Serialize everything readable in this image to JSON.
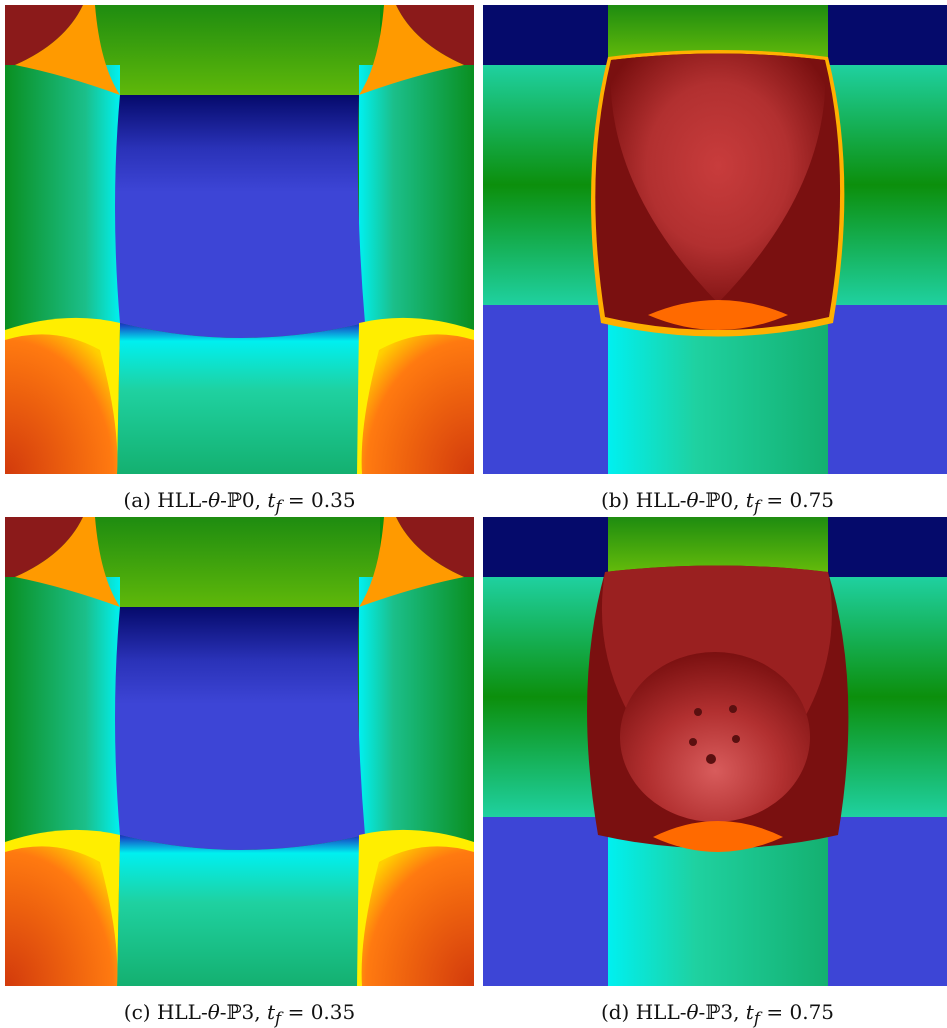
{
  "figure": {
    "panels": [
      {
        "id": "a",
        "label": "(a)",
        "method": "HLL-",
        "theta": "θ",
        "dash": "-",
        "space": "ℙ0",
        "sep": ", ",
        "t": "t",
        "sub": "f",
        "eq": " = 0.35",
        "time": "0.35"
      },
      {
        "id": "b",
        "label": "(b)",
        "method": "HLL-",
        "theta": "θ",
        "dash": "-",
        "space": "ℙ0",
        "sep": ", ",
        "t": "t",
        "sub": "f",
        "eq": " = 0.75",
        "time": "0.75"
      },
      {
        "id": "c",
        "label": "(c)",
        "method": "HLL-",
        "theta": "θ",
        "dash": "-",
        "space": "ℙ3",
        "sep": ", ",
        "t": "t",
        "sub": "f",
        "eq": " = 0.35",
        "time": "0.35"
      },
      {
        "id": "d",
        "label": "(d)",
        "method": "HLL-",
        "theta": "θ",
        "dash": "-",
        "space": "ℙ3",
        "sep": ", ",
        "t": "t",
        "sub": "f",
        "eq": " = 0.75",
        "time": "0.75"
      }
    ],
    "colors": {
      "dark_red": "#8b1a1a",
      "orange": "#ff9a00",
      "green": "#0c8f0c",
      "teal": "#1fd1a0",
      "cyan": "#00f0f0",
      "blue": "#3d45d6",
      "navy": "#050a6b",
      "red_orange": "#e84a10",
      "yellow": "#ffff00",
      "crimson": "#c23a3a"
    }
  }
}
